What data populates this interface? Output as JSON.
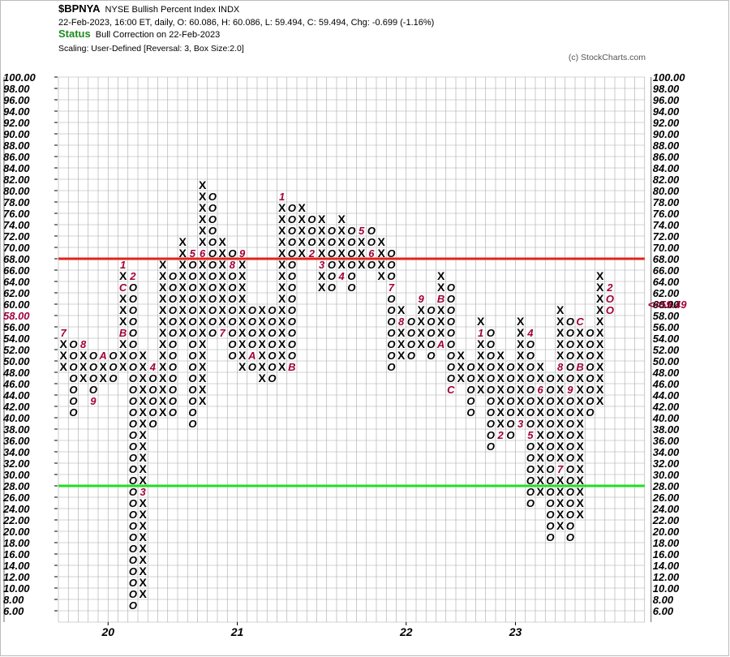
{
  "header": {
    "symbol": "$BPNYA",
    "description": "NYSE Bullish Percent Index  INDX",
    "stats": "22-Feb-2023, 16:00 ET, daily, O: 60.086, H: 60.086, L: 59.494, C: 59.494, Chg: -0.699 (-1.16%)",
    "status_label": "Status",
    "status_value": "Bull Correction on 22-Feb-2023",
    "scaling": "Scaling: User-Defined [Reversal: 3, Box Size:2.0]",
    "copyright": "(c) StockCharts.com"
  },
  "colors": {
    "x_mark": "#000000",
    "o_mark": "#000000",
    "month_marker": "#a0003c",
    "upper_line": "#e0241c",
    "lower_line": "#22dd22",
    "grid": "#a8a8a8"
  },
  "chart_data": {
    "type": "point-and-figure",
    "box_size": 2.0,
    "reversal": 3,
    "ylim": [
      6,
      100
    ],
    "y_ticks": [
      "100.00",
      "98.00",
      "96.00",
      "94.00",
      "92.00",
      "90.00",
      "88.00",
      "86.00",
      "84.00",
      "82.00",
      "80.00",
      "78.00",
      "76.00",
      "74.00",
      "72.00",
      "70.00",
      "68.00",
      "66.00",
      "64.00",
      "62.00",
      "60.00",
      "58.00",
      "56.00",
      "54.00",
      "52.00",
      "50.00",
      "48.00",
      "46.00",
      "44.00",
      "42.00",
      "40.00",
      "38.00",
      "36.00",
      "34.00",
      "32.00",
      "30.00",
      "28.00",
      "26.00",
      "24.00",
      "22.00",
      "20.00",
      "18.00",
      "16.00",
      "14.00",
      "12.00",
      "10.00",
      "8.00",
      "6.00"
    ],
    "highlight_tick_left": "58.00",
    "current_value_label": "<<59.49",
    "current_value": 59.49,
    "x_labels": [
      {
        "label": "20",
        "column": 5
      },
      {
        "label": "21",
        "column": 18
      },
      {
        "label": "22",
        "column": 35
      },
      {
        "label": "23",
        "column": 46
      }
    ],
    "horizontal_lines": [
      {
        "name": "upper",
        "value": 69
      },
      {
        "name": "lower",
        "value": 29
      }
    ],
    "columns": [
      {
        "t": "X",
        "lo": 50,
        "hi": 56,
        "m": [
          [
            56,
            "7"
          ]
        ]
      },
      {
        "t": "O",
        "lo": 42,
        "hi": 54
      },
      {
        "t": "X",
        "lo": 48,
        "hi": 54,
        "m": [
          [
            54,
            "8"
          ]
        ]
      },
      {
        "t": "O",
        "lo": 44,
        "hi": 52,
        "m": [
          [
            44,
            "9"
          ]
        ]
      },
      {
        "t": "X",
        "lo": 48,
        "hi": 52,
        "m": [
          [
            52,
            "A"
          ]
        ]
      },
      {
        "t": "O",
        "lo": 48,
        "hi": 52
      },
      {
        "t": "X",
        "lo": 50,
        "hi": 68,
        "m": [
          [
            68,
            "1"
          ],
          [
            56,
            "B"
          ],
          [
            64,
            "C"
          ]
        ]
      },
      {
        "t": "O",
        "lo": 8,
        "hi": 66,
        "m": [
          [
            66,
            "2"
          ]
        ]
      },
      {
        "t": "X",
        "lo": 10,
        "hi": 52,
        "m": [
          [
            28,
            "3"
          ]
        ]
      },
      {
        "t": "O",
        "lo": 40,
        "hi": 50,
        "m": [
          [
            50,
            "4"
          ]
        ]
      },
      {
        "t": "X",
        "lo": 42,
        "hi": 68
      },
      {
        "t": "O",
        "lo": 42,
        "hi": 66
      },
      {
        "t": "X",
        "lo": 56,
        "hi": 72
      },
      {
        "t": "O",
        "lo": 40,
        "hi": 70,
        "m": [
          [
            70,
            "5"
          ]
        ]
      },
      {
        "t": "X",
        "lo": 44,
        "hi": 82,
        "m": [
          [
            70,
            "6"
          ]
        ]
      },
      {
        "t": "O",
        "lo": 56,
        "hi": 80
      },
      {
        "t": "X",
        "lo": 56,
        "hi": 72,
        "m": [
          [
            56,
            "7"
          ]
        ]
      },
      {
        "t": "O",
        "lo": 52,
        "hi": 70,
        "m": [
          [
            68,
            "8"
          ]
        ]
      },
      {
        "t": "X",
        "lo": 50,
        "hi": 70,
        "m": [
          [
            70,
            "9"
          ]
        ]
      },
      {
        "t": "O",
        "lo": 50,
        "hi": 60,
        "m": [
          [
            52,
            "A"
          ]
        ]
      },
      {
        "t": "X",
        "lo": 48,
        "hi": 60
      },
      {
        "t": "O",
        "lo": 48,
        "hi": 60
      },
      {
        "t": "X",
        "lo": 50,
        "hi": 80,
        "m": [
          [
            80,
            "1"
          ]
        ]
      },
      {
        "t": "O",
        "lo": 50,
        "hi": 78,
        "m": [
          [
            50,
            "B"
          ]
        ]
      },
      {
        "t": "X",
        "lo": 70,
        "hi": 78
      },
      {
        "t": "O",
        "lo": 70,
        "hi": 76,
        "m": [
          [
            70,
            "2"
          ]
        ]
      },
      {
        "t": "X",
        "lo": 64,
        "hi": 76,
        "m": [
          [
            68,
            "3"
          ]
        ]
      },
      {
        "t": "O",
        "lo": 64,
        "hi": 74
      },
      {
        "t": "X",
        "lo": 66,
        "hi": 76,
        "m": [
          [
            66,
            "4"
          ]
        ]
      },
      {
        "t": "O",
        "lo": 64,
        "hi": 74
      },
      {
        "t": "X",
        "lo": 68,
        "hi": 74,
        "m": [
          [
            74,
            "5"
          ]
        ]
      },
      {
        "t": "O",
        "lo": 68,
        "hi": 74,
        "m": [
          [
            70,
            "6"
          ]
        ]
      },
      {
        "t": "X",
        "lo": 66,
        "hi": 72
      },
      {
        "t": "O",
        "lo": 50,
        "hi": 70,
        "m": [
          [
            64,
            "7"
          ]
        ]
      },
      {
        "t": "X",
        "lo": 52,
        "hi": 60,
        "m": [
          [
            58,
            "8"
          ]
        ]
      },
      {
        "t": "O",
        "lo": 52,
        "hi": 58
      },
      {
        "t": "X",
        "lo": 54,
        "hi": 62,
        "m": [
          [
            62,
            "9"
          ]
        ]
      },
      {
        "t": "O",
        "lo": 52,
        "hi": 60
      },
      {
        "t": "X",
        "lo": 54,
        "hi": 66,
        "m": [
          [
            62,
            "B"
          ],
          [
            54,
            "A"
          ]
        ]
      },
      {
        "t": "O",
        "lo": 46,
        "hi": 64,
        "m": [
          [
            46,
            "C"
          ]
        ]
      },
      {
        "t": "X",
        "lo": 48,
        "hi": 52
      },
      {
        "t": "O",
        "lo": 42,
        "hi": 50
      },
      {
        "t": "X",
        "lo": 46,
        "hi": 58,
        "m": [
          [
            56,
            "1"
          ]
        ]
      },
      {
        "t": "O",
        "lo": 36,
        "hi": 56
      },
      {
        "t": "X",
        "lo": 38,
        "hi": 52,
        "m": [
          [
            38,
            "2"
          ]
        ]
      },
      {
        "t": "O",
        "lo": 38,
        "hi": 50
      },
      {
        "t": "X",
        "lo": 40,
        "hi": 58,
        "m": [
          [
            40,
            "3"
          ]
        ]
      },
      {
        "t": "O",
        "lo": 26,
        "hi": 56,
        "m": [
          [
            56,
            "4"
          ],
          [
            38,
            "5"
          ]
        ]
      },
      {
        "t": "X",
        "lo": 28,
        "hi": 50,
        "m": [
          [
            46,
            "6"
          ]
        ]
      },
      {
        "t": "O",
        "lo": 20,
        "hi": 48
      },
      {
        "t": "X",
        "lo": 22,
        "hi": 60,
        "m": [
          [
            32,
            "7"
          ],
          [
            50,
            "8"
          ]
        ]
      },
      {
        "t": "O",
        "lo": 20,
        "hi": 58,
        "m": [
          [
            46,
            "9"
          ]
        ]
      },
      {
        "t": "X",
        "lo": 24,
        "hi": 58,
        "m": [
          [
            50,
            "B"
          ],
          [
            22,
            "A"
          ],
          [
            58,
            "C"
          ]
        ]
      },
      {
        "t": "O",
        "lo": 42,
        "hi": 56
      },
      {
        "t": "X",
        "lo": 44,
        "hi": 66
      },
      {
        "t": "O",
        "lo": 60,
        "hi": 64,
        "m": [
          [
            64,
            "2"
          ],
          [
            44,
            "1"
          ]
        ]
      }
    ]
  }
}
